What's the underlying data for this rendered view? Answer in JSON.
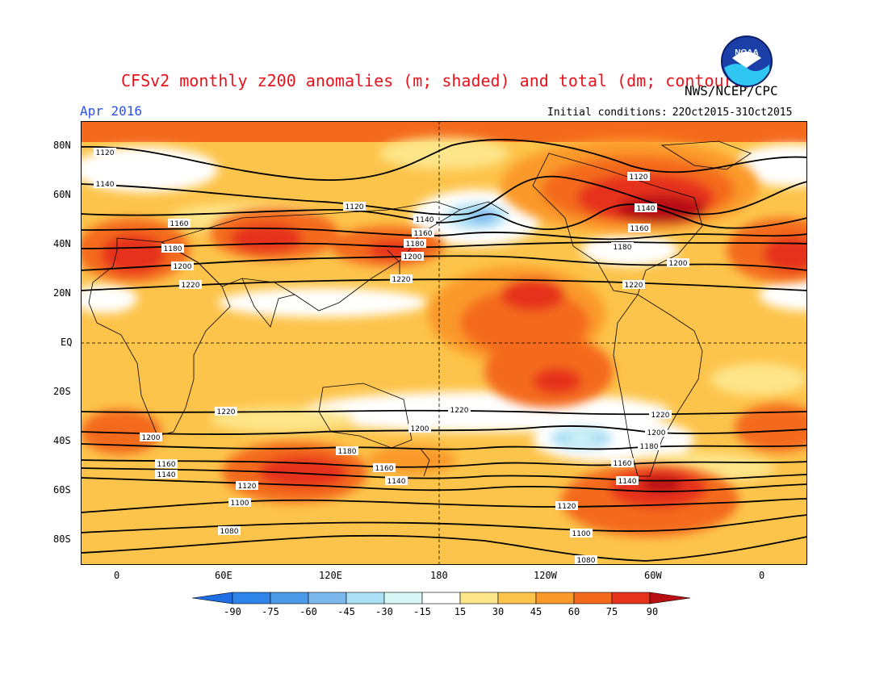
{
  "header": {
    "title": "CFSv2 monthly z200 anomalies (m; shaded) and total (dm; contours)",
    "agency": "NWS/NCEP/CPC",
    "month": "Apr 2016",
    "initial_label": "Initial conditions:",
    "initial_value": "22Oct2015-31Oct2015",
    "logo_text": "NOAA"
  },
  "map": {
    "lat_labels": [
      "80N",
      "60N",
      "40N",
      "20N",
      "EQ",
      "20S",
      "40S",
      "60S",
      "80S"
    ],
    "lon_labels": [
      "0",
      "60E",
      "120E",
      "180",
      "120W",
      "60W",
      "0"
    ],
    "contour_labels": [
      "1080",
      "1100",
      "1120",
      "1140",
      "1160",
      "1180",
      "1200",
      "1220"
    ]
  },
  "colorbar": {
    "labels": [
      "-90",
      "-75",
      "-60",
      "-45",
      "-30",
      "-15",
      "15",
      "30",
      "45",
      "60",
      "75",
      "90"
    ],
    "colors": [
      "#1e6ee6",
      "#2f84ea",
      "#4b9be8",
      "#7ab8ee",
      "#ace0f5",
      "#d7f7f7",
      "#ffffff",
      "#fde58a",
      "#fdc44b",
      "#fb9a2a",
      "#f46a1c",
      "#e6311b",
      "#b81012"
    ]
  },
  "chart_data": {
    "type": "heatmap",
    "variable": "z200",
    "period": "Apr 2016",
    "shading_units": "m",
    "contour_units": "dm",
    "contour_levels": [
      1080,
      1100,
      1120,
      1140,
      1160,
      1180,
      1200,
      1220
    ],
    "colorbar_levels": [
      -90,
      -75,
      -60,
      -45,
      -30,
      -15,
      15,
      30,
      45,
      60,
      75,
      90
    ]
  }
}
